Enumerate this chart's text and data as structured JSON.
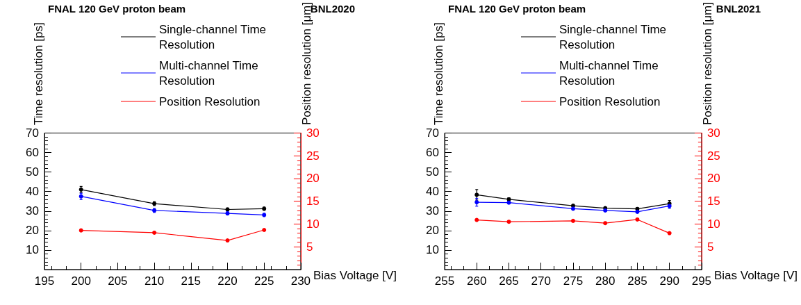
{
  "chart_data": [
    {
      "type": "line",
      "title": "FNAL 120 GeV proton beam",
      "subtitle": "BNL2020",
      "xlabel": "Bias Voltage [V]",
      "ylabel": "Time resolution [ps]",
      "y2label": "Position resolution [μm]",
      "x": [
        200,
        210,
        220,
        225
      ],
      "series": [
        {
          "name": "Single-channel Time Resolution",
          "color": "#000000",
          "values": [
            41.0,
            33.8,
            30.8,
            31.2
          ],
          "errors": [
            1.6,
            1.0,
            0.8,
            0.8
          ]
        },
        {
          "name": "Multi-channel Time Resolution",
          "color": "#0000ff",
          "values": [
            37.5,
            30.3,
            28.8,
            28.0
          ],
          "errors": [
            1.6,
            1.0,
            0.8,
            0.8
          ]
        },
        {
          "name": "Position Resolution",
          "color": "#ff0000",
          "values": [
            8.6,
            8.1,
            6.4,
            8.7
          ],
          "axis": "y2"
        }
      ],
      "xlim": [
        195,
        230
      ],
      "xticks": [
        195,
        200,
        205,
        210,
        215,
        220,
        225,
        230
      ],
      "ylim": [
        0,
        70
      ],
      "yticks": [
        10,
        20,
        30,
        40,
        50,
        60,
        70
      ],
      "y2lim": [
        0,
        30
      ],
      "y2ticks": [
        5,
        10,
        15,
        20,
        25,
        30
      ],
      "marker": "circle",
      "line_style": "solid",
      "grid": false,
      "legend": "top"
    },
    {
      "type": "line",
      "title": "FNAL 120 GeV proton beam",
      "subtitle": "BNL2021",
      "xlabel": "Bias Voltage [V]",
      "ylabel": "Time resolution [ps]",
      "y2label": "Position resolution [μm]",
      "x": [
        260,
        265,
        275,
        280,
        285,
        290
      ],
      "series": [
        {
          "name": "Single-channel Time Resolution",
          "color": "#000000",
          "values": [
            38.3,
            36.0,
            32.7,
            31.5,
            31.1,
            33.8
          ],
          "errors": [
            2.7,
            0.8,
            0.7,
            0.6,
            0.6,
            1.6
          ]
        },
        {
          "name": "Multi-channel Time Resolution",
          "color": "#0000ff",
          "values": [
            34.5,
            34.3,
            31.2,
            30.3,
            29.6,
            32.6
          ],
          "errors": [
            2.0,
            0.6,
            0.6,
            0.5,
            0.5,
            1.2
          ]
        },
        {
          "name": "Position Resolution",
          "color": "#ff0000",
          "values": [
            10.9,
            10.5,
            10.7,
            10.2,
            11.0,
            8.0
          ],
          "axis": "y2"
        }
      ],
      "xlim": [
        255,
        295
      ],
      "xticks": [
        255,
        260,
        265,
        270,
        275,
        280,
        285,
        290,
        295
      ],
      "ylim": [
        0,
        70
      ],
      "yticks": [
        10,
        20,
        30,
        40,
        50,
        60,
        70
      ],
      "y2lim": [
        0,
        30
      ],
      "y2ticks": [
        5,
        10,
        15,
        20,
        25,
        30
      ],
      "marker": "circle",
      "line_style": "solid",
      "grid": false,
      "legend": "top"
    }
  ]
}
